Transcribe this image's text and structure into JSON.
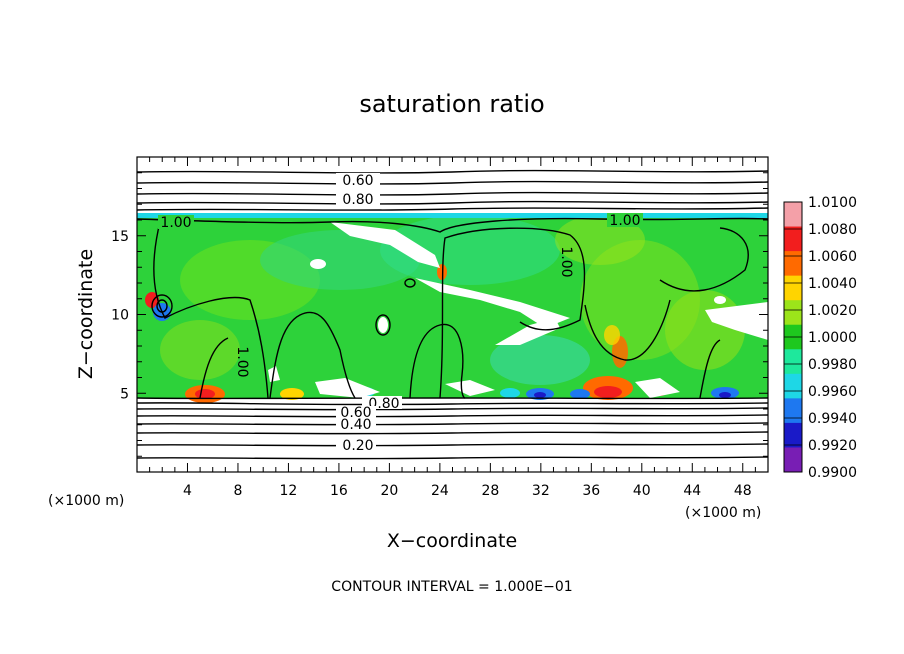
{
  "chart_data": {
    "type": "heatmap",
    "title": "saturation ratio",
    "xlabel": "X−coordinate",
    "ylabel": "Z−coordinate",
    "x_unit_left": "(×1000 m)",
    "x_unit_right": "(×1000 m)",
    "xlim": [
      0,
      50
    ],
    "ylim": [
      0,
      20
    ],
    "x_ticks": [
      4,
      8,
      12,
      16,
      20,
      24,
      28,
      32,
      36,
      40,
      44,
      48
    ],
    "y_ticks": [
      5,
      10,
      15
    ],
    "footer": "CONTOUR INTERVAL = 1.000E−01",
    "colorbar": {
      "labels": [
        "1.0100",
        "1.0080",
        "1.0060",
        "1.0040",
        "1.0020",
        "1.0000",
        "0.9980",
        "0.9960",
        "0.9940",
        "0.9920",
        "0.9900"
      ],
      "colors": [
        "#f4a0a8",
        "#f21e1e",
        "#ff6a00",
        "#ffd400",
        "#9ce41a",
        "#1ec81e",
        "#1ee89c",
        "#1ed7e6",
        "#1e78f0",
        "#1a1ac8",
        "#781eb4"
      ]
    },
    "contour_lines": [
      {
        "label": "0.60",
        "y": 18.2
      },
      {
        "label": "0.80",
        "y": 17.1
      },
      {
        "label": "1.00",
        "y": 15.7
      },
      {
        "label": "1.00",
        "y": 15.7
      },
      {
        "label": "1.00",
        "y": 13.8
      },
      {
        "label": "1.00",
        "y": 6.9
      },
      {
        "label": "0.80",
        "y": 4.4
      },
      {
        "label": "0.60",
        "y": 3.8
      },
      {
        "label": "0.40",
        "y": 3.1
      },
      {
        "label": "0.20",
        "y": 1.7
      }
    ],
    "grid": false
  }
}
